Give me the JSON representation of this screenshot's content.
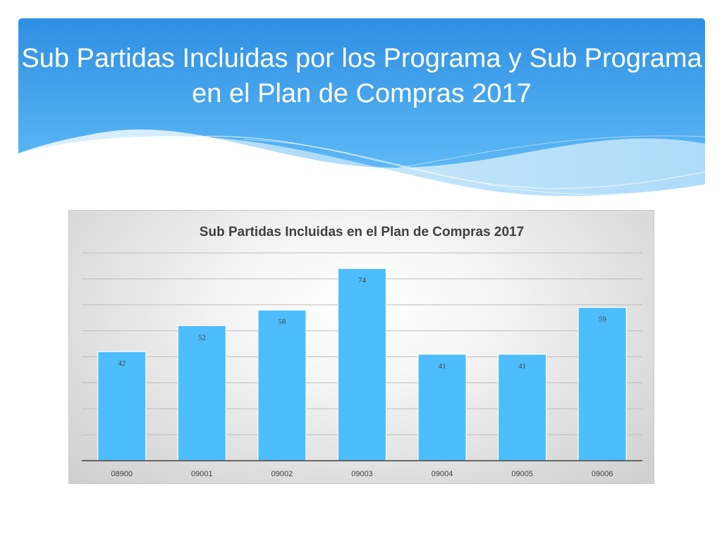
{
  "slide": {
    "title": "Sub Partidas Incluidas por los  Programa y Sub Programa en el Plan de Compras 2017"
  },
  "theme": {
    "header_color_top": "#2f8fe3",
    "header_color_bottom": "#5cb8f5",
    "bar_color": "#4dbdfb",
    "bar_edge_color": "#ffffff"
  },
  "chart_data": {
    "type": "bar",
    "title": "Sub Partidas Incluidas en el Plan de Compras 2017",
    "xlabel": "",
    "ylabel": "",
    "categories": [
      "08900",
      "09001",
      "09002",
      "09003",
      "09004",
      "09005",
      "09006"
    ],
    "values": [
      42,
      52,
      58,
      74,
      41,
      41,
      59
    ],
    "ylim": [
      0,
      80
    ],
    "grid": true,
    "legend": "none",
    "data_labels": true
  }
}
